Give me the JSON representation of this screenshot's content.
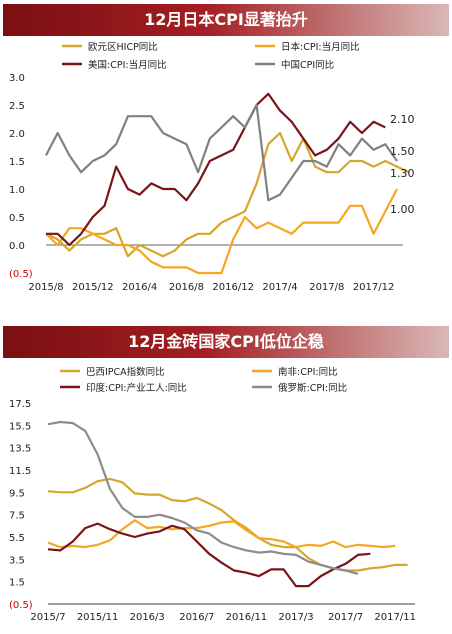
{
  "chart_data": [
    {
      "type": "line",
      "title": "12月日本CPI显著抬升",
      "x_ticks": [
        "2015/8",
        "2015/12",
        "2016/4",
        "2016/8",
        "2016/12",
        "2017/4",
        "2017/8",
        "2017/12"
      ],
      "ylim": [
        -0.5,
        3.0
      ],
      "y_ticks": [
        "(0.5)",
        "0.0",
        "0.5",
        "1.0",
        "1.5",
        "2.0",
        "2.5",
        "3.0"
      ],
      "x_start": "2015-08",
      "legend_position": "top",
      "end_labels": [
        "2.10",
        "1.50",
        "1.30",
        "1.00"
      ],
      "series": [
        {
          "name": "欧元区HICP同比",
          "color": "#d4a72c",
          "values": [
            0.2,
            0.1,
            -0.1,
            0.1,
            0.2,
            0.2,
            0.3,
            -0.2,
            0.0,
            -0.1,
            -0.2,
            -0.1,
            0.1,
            0.2,
            0.2,
            0.4,
            0.5,
            0.6,
            1.1,
            1.8,
            2.0,
            1.5,
            1.9,
            1.4,
            1.3,
            1.3,
            1.5,
            1.5,
            1.4,
            1.5,
            1.4,
            1.3
          ]
        },
        {
          "name": "日本:CPI:当月同比",
          "color": "#f5a623",
          "values": [
            0.2,
            0.0,
            0.3,
            0.3,
            0.2,
            0.1,
            0.0,
            0.0,
            -0.1,
            -0.3,
            -0.4,
            -0.4,
            -0.4,
            -0.5,
            -0.5,
            -0.5,
            0.1,
            0.5,
            0.3,
            0.4,
            0.3,
            0.2,
            0.4,
            0.4,
            0.4,
            0.4,
            0.7,
            0.7,
            0.2,
            0.6,
            1.0
          ]
        },
        {
          "name": "美国:CPI:当月同比",
          "color": "#7b1418",
          "values": [
            0.2,
            0.2,
            0.0,
            0.2,
            0.5,
            0.7,
            1.4,
            1.0,
            0.9,
            1.1,
            1.0,
            1.0,
            0.8,
            1.1,
            1.5,
            1.6,
            1.7,
            2.1,
            2.5,
            2.7,
            2.4,
            2.2,
            1.9,
            1.6,
            1.7,
            1.9,
            2.2,
            2.0,
            2.2,
            2.1
          ]
        },
        {
          "name": "中国CPI同比",
          "color": "#808080",
          "values": [
            1.6,
            2.0,
            1.6,
            1.3,
            1.5,
            1.6,
            1.8,
            2.3,
            2.3,
            2.3,
            2.0,
            1.9,
            1.8,
            1.3,
            1.9,
            2.1,
            2.3,
            2.1,
            2.5,
            0.8,
            0.9,
            1.2,
            1.5,
            1.5,
            1.4,
            1.8,
            1.6,
            1.9,
            1.7,
            1.8,
            1.5
          ]
        }
      ]
    },
    {
      "type": "line",
      "title": "12月金砖国家CPI低位企稳",
      "x_ticks": [
        "2015/7",
        "2015/11",
        "2016/3",
        "2016/7",
        "2016/11",
        "2017/3",
        "2017/7",
        "2017/11"
      ],
      "ylim": [
        -0.5,
        17.5
      ],
      "y_ticks": [
        "(0.5)",
        "1.5",
        "3.5",
        "5.5",
        "7.5",
        "9.5",
        "11.5",
        "13.5",
        "15.5",
        "17.5"
      ],
      "x_start": "2015-07",
      "legend_position": "top",
      "series": [
        {
          "name": "巴西IPCA指数同比",
          "color": "#d4a72c",
          "values": [
            9.6,
            9.5,
            9.5,
            9.9,
            10.5,
            10.7,
            10.4,
            9.4,
            9.3,
            9.3,
            8.8,
            8.7,
            9.0,
            8.5,
            7.9,
            7.0,
            6.3,
            5.4,
            4.8,
            4.6,
            4.6,
            3.6,
            3.0,
            2.7,
            2.5,
            2.5,
            2.7,
            2.8,
            3.0,
            3.0
          ]
        },
        {
          "name": "南非:CPI:同比",
          "color": "#f5a623",
          "values": [
            5.0,
            4.6,
            4.7,
            4.6,
            4.8,
            5.2,
            6.2,
            7.0,
            6.3,
            6.4,
            6.2,
            6.3,
            6.3,
            6.5,
            6.8,
            6.9,
            6.1,
            5.4,
            5.3,
            5.1,
            4.6,
            4.8,
            4.7,
            5.1,
            4.6,
            4.8,
            4.7,
            4.6,
            4.7
          ]
        },
        {
          "name": "印度:CPI:产业工人:同比",
          "color": "#7b1418",
          "values": [
            4.4,
            4.3,
            5.1,
            6.3,
            6.7,
            6.2,
            5.8,
            5.5,
            5.8,
            6.0,
            6.5,
            6.2,
            5.1,
            4.0,
            3.2,
            2.5,
            2.3,
            2.0,
            2.6,
            2.6,
            1.1,
            1.1,
            2.0,
            2.6,
            3.1,
            3.9,
            4.0
          ]
        },
        {
          "name": "俄罗斯:CPI:同比",
          "color": "#8c8c8c",
          "values": [
            15.6,
            15.8,
            15.7,
            15.0,
            12.9,
            9.8,
            8.1,
            7.3,
            7.3,
            7.5,
            7.2,
            6.8,
            6.1,
            5.8,
            5.0,
            4.6,
            4.3,
            4.1,
            4.2,
            4.0,
            3.9,
            3.3,
            3.0,
            2.7,
            2.5,
            2.2
          ]
        }
      ]
    }
  ]
}
